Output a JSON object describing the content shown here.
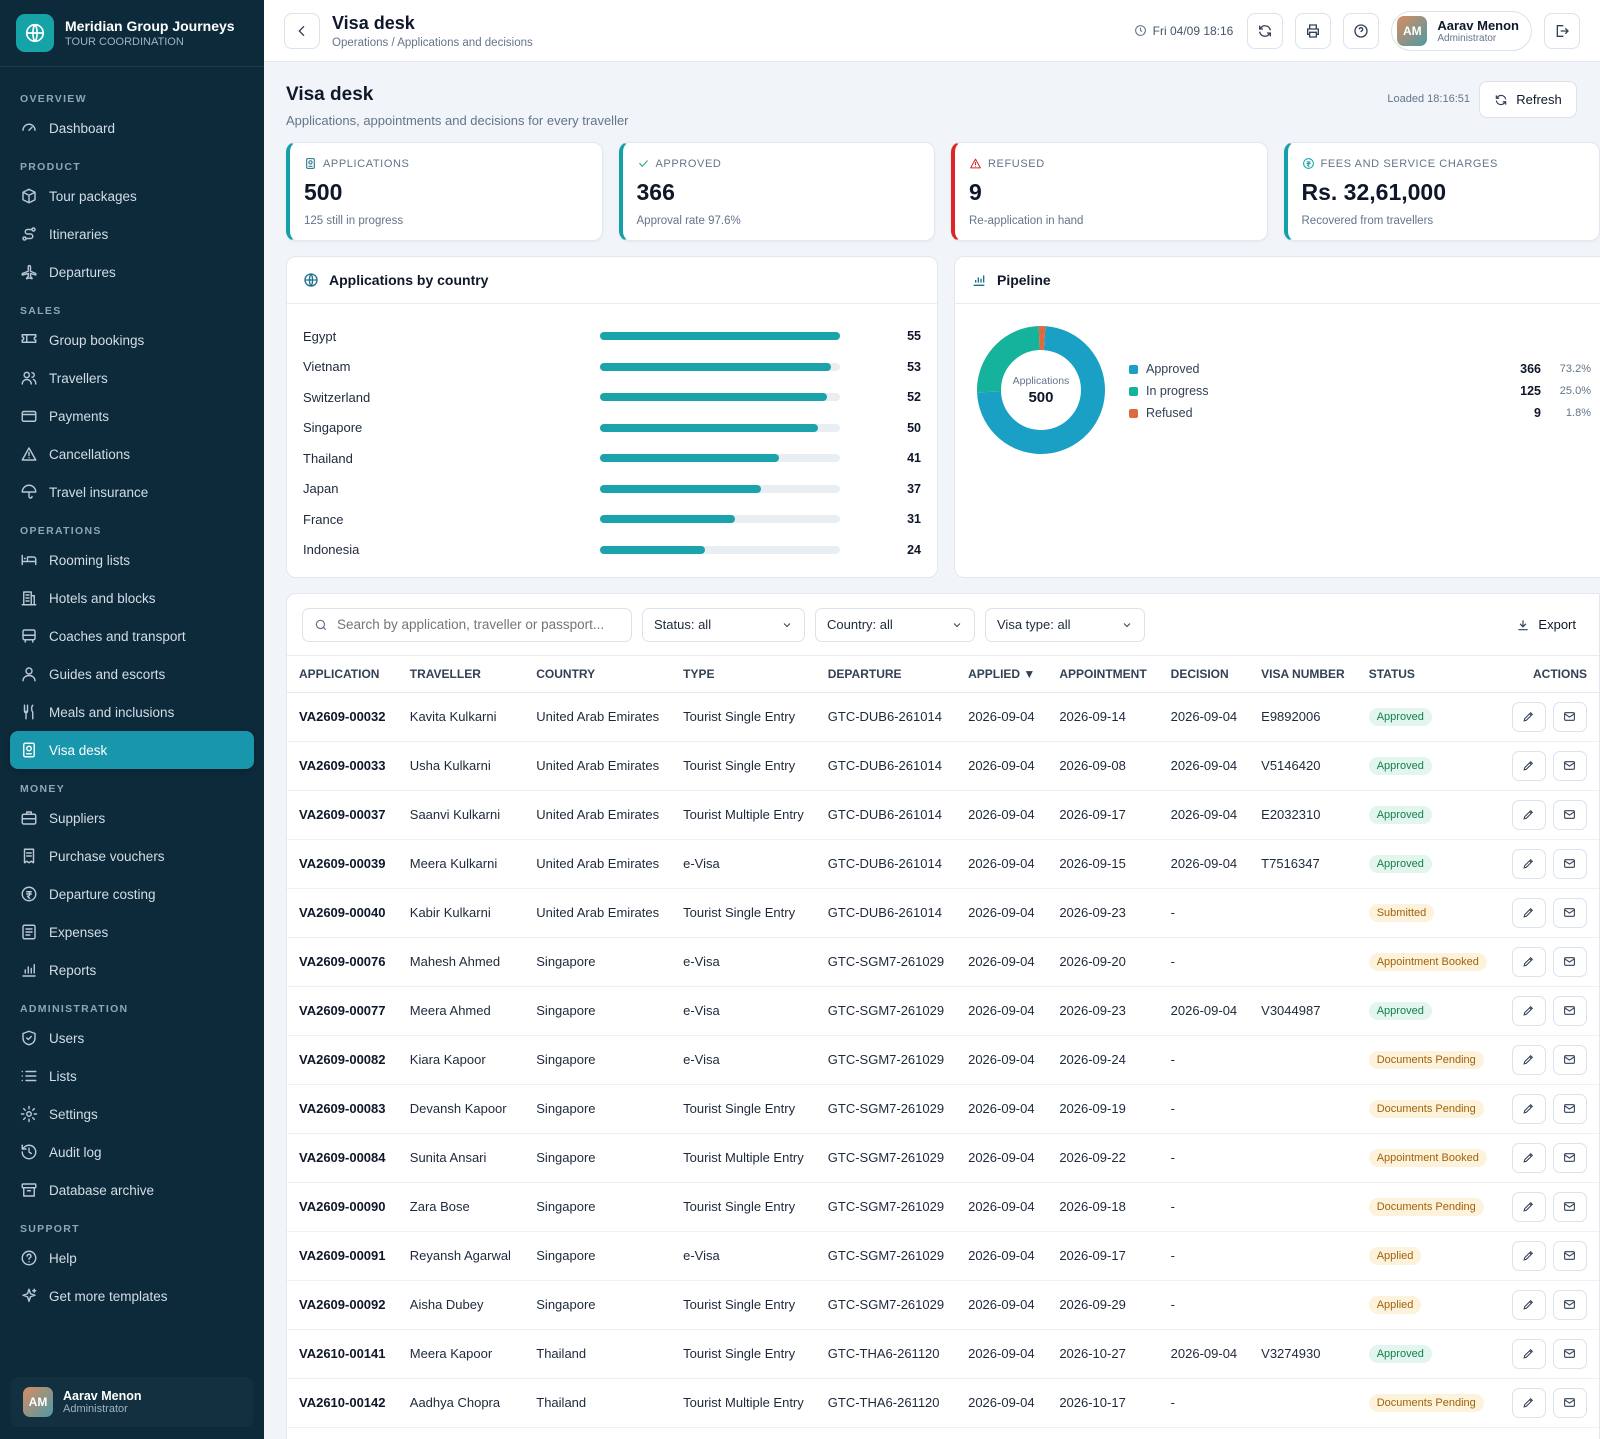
{
  "brand": {
    "name": "Meridian Group Journeys",
    "sub": "TOUR COORDINATION"
  },
  "nav": [
    {
      "section": "OVERVIEW",
      "items": [
        {
          "label": "Dashboard",
          "icon": "dashboard-icon"
        }
      ]
    },
    {
      "section": "PRODUCT",
      "items": [
        {
          "label": "Tour packages",
          "icon": "package-icon"
        },
        {
          "label": "Itineraries",
          "icon": "route-icon"
        },
        {
          "label": "Departures",
          "icon": "plane-icon"
        }
      ]
    },
    {
      "section": "SALES",
      "items": [
        {
          "label": "Group bookings",
          "icon": "ticket-icon"
        },
        {
          "label": "Travellers",
          "icon": "users-icon"
        },
        {
          "label": "Payments",
          "icon": "card-icon"
        },
        {
          "label": "Cancellations",
          "icon": "warning-icon"
        },
        {
          "label": "Travel insurance",
          "icon": "umbrella-icon"
        }
      ]
    },
    {
      "section": "OPERATIONS",
      "items": [
        {
          "label": "Rooming lists",
          "icon": "bed-icon"
        },
        {
          "label": "Hotels and blocks",
          "icon": "building-icon"
        },
        {
          "label": "Coaches and transport",
          "icon": "bus-icon"
        },
        {
          "label": "Guides and escorts",
          "icon": "user-icon"
        },
        {
          "label": "Meals and inclusions",
          "icon": "utensils-icon"
        },
        {
          "label": "Visa desk",
          "icon": "passport-icon",
          "active": true
        }
      ]
    },
    {
      "section": "MONEY",
      "items": [
        {
          "label": "Suppliers",
          "icon": "briefcase-icon"
        },
        {
          "label": "Purchase vouchers",
          "icon": "receipt-icon"
        },
        {
          "label": "Departure costing",
          "icon": "coin-icon"
        },
        {
          "label": "Expenses",
          "icon": "expense-icon"
        },
        {
          "label": "Reports",
          "icon": "chart-icon"
        }
      ]
    },
    {
      "section": "ADMINISTRATION",
      "items": [
        {
          "label": "Users",
          "icon": "shield-icon"
        },
        {
          "label": "Lists",
          "icon": "list-icon"
        },
        {
          "label": "Settings",
          "icon": "gear-icon"
        },
        {
          "label": "Audit log",
          "icon": "history-icon"
        },
        {
          "label": "Database archive",
          "icon": "archive-icon"
        }
      ]
    },
    {
      "section": "SUPPORT",
      "items": [
        {
          "label": "Help",
          "icon": "help-icon"
        },
        {
          "label": "Get more templates",
          "icon": "sparkle-icon"
        }
      ]
    }
  ],
  "user": {
    "initials": "AM",
    "name": "Aarav Menon",
    "role": "Administrator"
  },
  "header": {
    "title": "Visa desk",
    "breadcrumb": "Operations / Applications and decisions",
    "datetime": "Fri 04/09 18:16"
  },
  "page": {
    "title": "Visa desk",
    "subtitle": "Applications, appointments and decisions for every traveller",
    "loaded": "Loaded 18:16:51",
    "refresh_label": "Refresh"
  },
  "kpis": [
    {
      "label": "APPLICATIONS",
      "value": "500",
      "note": "125 still in progress",
      "icon": "passport-icon"
    },
    {
      "label": "APPROVED",
      "value": "366",
      "note": "Approval rate 97.6%",
      "icon": "check-icon"
    },
    {
      "label": "REFUSED",
      "value": "9",
      "note": "Re-application in hand",
      "icon": "alert-icon"
    },
    {
      "label": "FEES AND SERVICE CHARGES",
      "value": "Rs. 32,61,000",
      "note": "Recovered from travellers",
      "icon": "coin-icon"
    }
  ],
  "countries_panel": {
    "title": "Applications by country",
    "max": 55,
    "items": [
      {
        "name": "Egypt",
        "value": 55
      },
      {
        "name": "Vietnam",
        "value": 53
      },
      {
        "name": "Switzerland",
        "value": 52
      },
      {
        "name": "Singapore",
        "value": 50
      },
      {
        "name": "Thailand",
        "value": 41
      },
      {
        "name": "Japan",
        "value": 37
      },
      {
        "name": "France",
        "value": 31
      },
      {
        "name": "Indonesia",
        "value": 24
      }
    ]
  },
  "pipeline": {
    "title": "Pipeline",
    "center_label": "Applications",
    "center_value": "500",
    "items": [
      {
        "name": "Approved",
        "value": 366,
        "pct": "73.2%",
        "color": "#1aa0c4"
      },
      {
        "name": "In progress",
        "value": 125,
        "pct": "25.0%",
        "color": "#15b39b"
      },
      {
        "name": "Refused",
        "value": 9,
        "pct": "1.8%",
        "color": "#e06a3f"
      }
    ]
  },
  "filters": {
    "search_placeholder": "Search by application, traveller or passport...",
    "status": "Status: all",
    "country": "Country: all",
    "visa_type": "Visa type: all",
    "export_label": "Export"
  },
  "table": {
    "columns": [
      "APPLICATION",
      "TRAVELLER",
      "COUNTRY",
      "TYPE",
      "DEPARTURE",
      "APPLIED ▼",
      "APPOINTMENT",
      "DECISION",
      "VISA NUMBER",
      "STATUS",
      "ACTIONS"
    ],
    "rows": [
      [
        "VA2609-00032",
        "Kavita Kulkarni",
        "United Arab Emirates",
        "Tourist Single Entry",
        "GTC-DUB6-261014",
        "2026-09-04",
        "2026-09-14",
        "2026-09-04",
        "E9892006",
        "Approved"
      ],
      [
        "VA2609-00033",
        "Usha Kulkarni",
        "United Arab Emirates",
        "Tourist Single Entry",
        "GTC-DUB6-261014",
        "2026-09-04",
        "2026-09-08",
        "2026-09-04",
        "V5146420",
        "Approved"
      ],
      [
        "VA2609-00037",
        "Saanvi Kulkarni",
        "United Arab Emirates",
        "Tourist Multiple Entry",
        "GTC-DUB6-261014",
        "2026-09-04",
        "2026-09-17",
        "2026-09-04",
        "E2032310",
        "Approved"
      ],
      [
        "VA2609-00039",
        "Meera Kulkarni",
        "United Arab Emirates",
        "e-Visa",
        "GTC-DUB6-261014",
        "2026-09-04",
        "2026-09-15",
        "2026-09-04",
        "T7516347",
        "Approved"
      ],
      [
        "VA2609-00040",
        "Kabir Kulkarni",
        "United Arab Emirates",
        "Tourist Single Entry",
        "GTC-DUB6-261014",
        "2026-09-04",
        "2026-09-23",
        "-",
        "",
        "Submitted"
      ],
      [
        "VA2609-00076",
        "Mahesh Ahmed",
        "Singapore",
        "e-Visa",
        "GTC-SGM7-261029",
        "2026-09-04",
        "2026-09-20",
        "-",
        "",
        "Appointment Booked"
      ],
      [
        "VA2609-00077",
        "Meera Ahmed",
        "Singapore",
        "e-Visa",
        "GTC-SGM7-261029",
        "2026-09-04",
        "2026-09-23",
        "2026-09-04",
        "V3044987",
        "Approved"
      ],
      [
        "VA2609-00082",
        "Kiara Kapoor",
        "Singapore",
        "e-Visa",
        "GTC-SGM7-261029",
        "2026-09-04",
        "2026-09-24",
        "-",
        "",
        "Documents Pending"
      ],
      [
        "VA2609-00083",
        "Devansh Kapoor",
        "Singapore",
        "Tourist Single Entry",
        "GTC-SGM7-261029",
        "2026-09-04",
        "2026-09-19",
        "-",
        "",
        "Documents Pending"
      ],
      [
        "VA2609-00084",
        "Sunita Ansari",
        "Singapore",
        "Tourist Multiple Entry",
        "GTC-SGM7-261029",
        "2026-09-04",
        "2026-09-22",
        "-",
        "",
        "Appointment Booked"
      ],
      [
        "VA2609-00090",
        "Zara Bose",
        "Singapore",
        "Tourist Single Entry",
        "GTC-SGM7-261029",
        "2026-09-04",
        "2026-09-18",
        "-",
        "",
        "Documents Pending"
      ],
      [
        "VA2609-00091",
        "Reyansh Agarwal",
        "Singapore",
        "e-Visa",
        "GTC-SGM7-261029",
        "2026-09-04",
        "2026-09-17",
        "-",
        "",
        "Applied"
      ],
      [
        "VA2609-00092",
        "Aisha Dubey",
        "Singapore",
        "Tourist Single Entry",
        "GTC-SGM7-261029",
        "2026-09-04",
        "2026-09-29",
        "-",
        "",
        "Applied"
      ],
      [
        "VA2610-00141",
        "Meera Kapoor",
        "Thailand",
        "Tourist Single Entry",
        "GTC-THA6-261120",
        "2026-09-04",
        "2026-10-27",
        "2026-09-04",
        "V3274930",
        "Approved"
      ],
      [
        "VA2610-00142",
        "Aadhya Chopra",
        "Thailand",
        "Tourist Multiple Entry",
        "GTC-THA6-261120",
        "2026-09-04",
        "2026-10-17",
        "-",
        "",
        "Documents Pending"
      ]
    ]
  },
  "colors": {
    "accent": "#1796ac",
    "sidebar": "#0d2a3a",
    "approved": "#14804a",
    "pending": "#a1620a",
    "refused": "#dc2626"
  }
}
